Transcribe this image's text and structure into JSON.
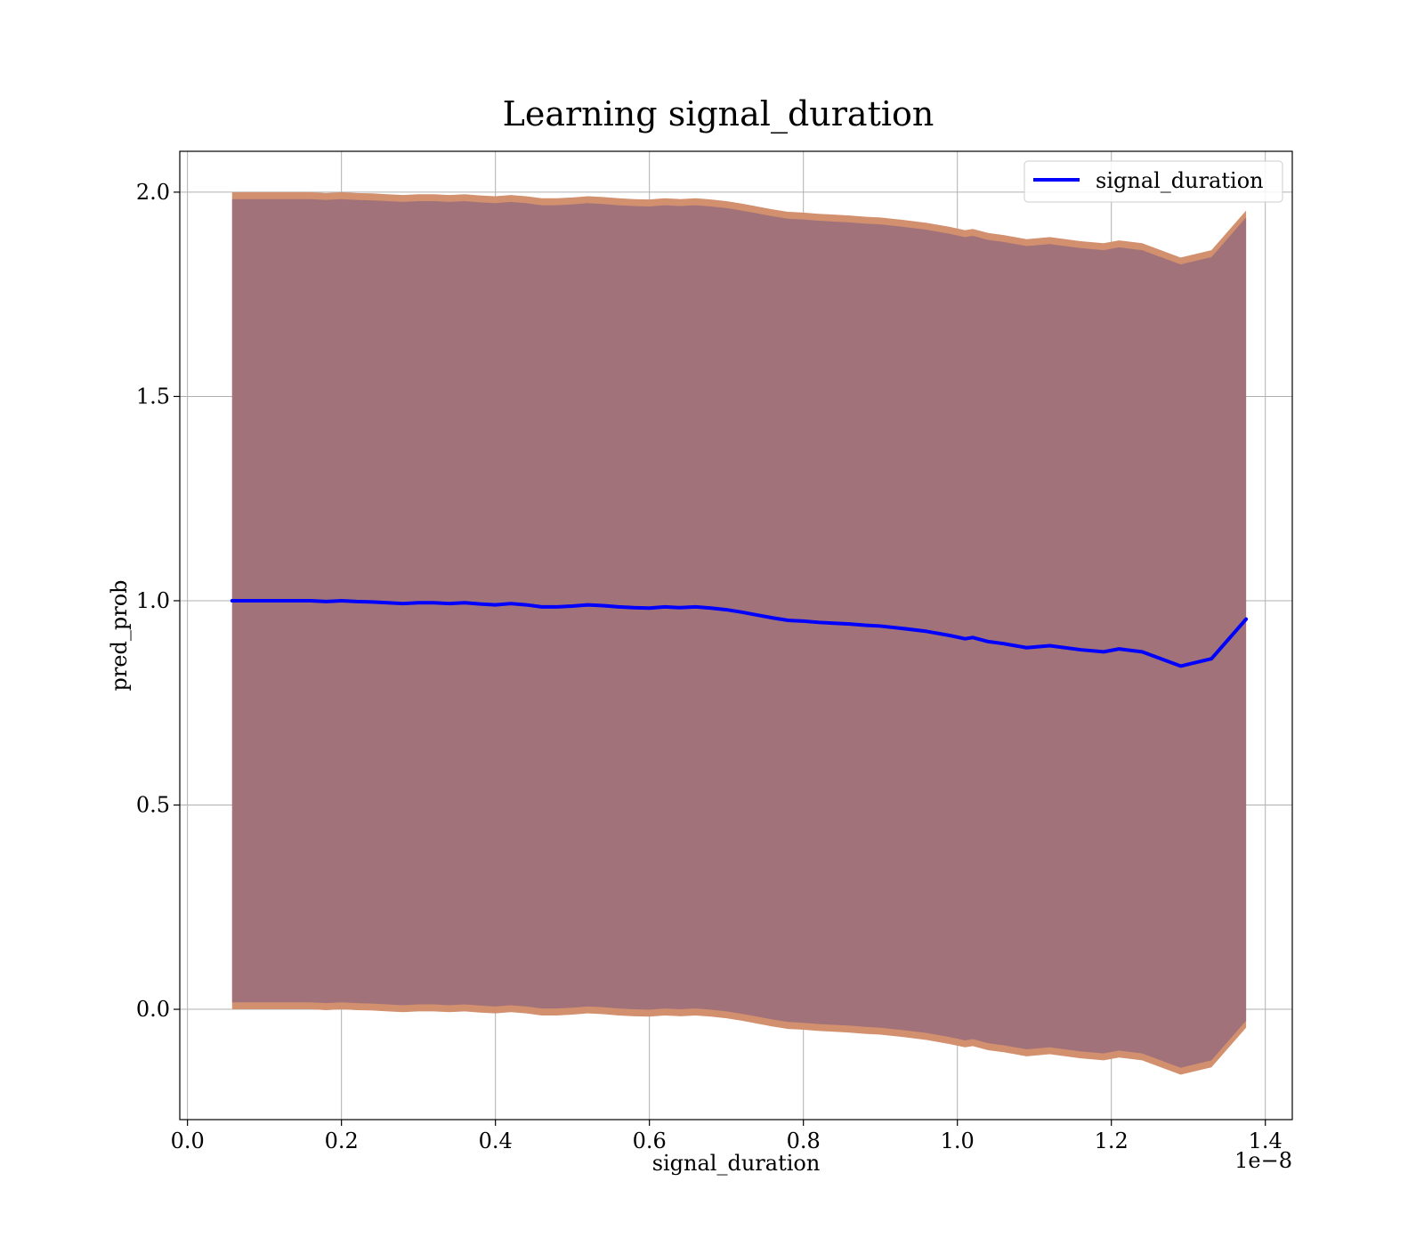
{
  "chart_data": {
    "type": "area",
    "title": "Learning signal_duration",
    "xlabel": "signal_duration",
    "ylabel": "pred_prob",
    "x_offset_text": "1e−8",
    "xlim": [
      -0.01,
      1.435
    ],
    "ylim": [
      -0.27,
      2.1
    ],
    "x_ticks": [
      0.0,
      0.2,
      0.4,
      0.6,
      0.8,
      1.0,
      1.2,
      1.4
    ],
    "x_tick_labels": [
      "0.0",
      "0.2",
      "0.4",
      "0.6",
      "0.8",
      "1.0",
      "1.2",
      "1.4"
    ],
    "y_ticks": [
      0.0,
      0.5,
      1.0,
      1.5,
      2.0
    ],
    "y_tick_labels": [
      "0.0",
      "0.5",
      "1.0",
      "1.5",
      "2.0"
    ],
    "grid": true,
    "legend": {
      "placement": "top-right",
      "entries": [
        "signal_duration"
      ]
    },
    "colors": {
      "line": "#0000ff",
      "band_outer": "#d2906e",
      "band_inner": "#a2727a"
    },
    "x": [
      0.058,
      0.08,
      0.1,
      0.12,
      0.14,
      0.16,
      0.18,
      0.2,
      0.22,
      0.24,
      0.26,
      0.28,
      0.3,
      0.32,
      0.34,
      0.36,
      0.38,
      0.4,
      0.42,
      0.44,
      0.46,
      0.48,
      0.5,
      0.52,
      0.54,
      0.56,
      0.58,
      0.6,
      0.62,
      0.64,
      0.66,
      0.68,
      0.7,
      0.72,
      0.74,
      0.76,
      0.78,
      0.8,
      0.82,
      0.84,
      0.86,
      0.88,
      0.9,
      0.93,
      0.96,
      0.99,
      1.01,
      1.02,
      1.04,
      1.06,
      1.09,
      1.12,
      1.16,
      1.19,
      1.21,
      1.24,
      1.29,
      1.33,
      1.375
    ],
    "series": [
      {
        "name": "signal_duration",
        "values": [
          1.0,
          1.0,
          1.0,
          1.0,
          1.0,
          1.0,
          0.998,
          1.0,
          0.998,
          0.997,
          0.995,
          0.993,
          0.995,
          0.995,
          0.993,
          0.995,
          0.992,
          0.99,
          0.993,
          0.99,
          0.985,
          0.985,
          0.987,
          0.99,
          0.988,
          0.985,
          0.983,
          0.982,
          0.985,
          0.983,
          0.985,
          0.982,
          0.978,
          0.972,
          0.965,
          0.958,
          0.952,
          0.95,
          0.947,
          0.945,
          0.943,
          0.94,
          0.938,
          0.932,
          0.925,
          0.915,
          0.907,
          0.91,
          0.9,
          0.895,
          0.885,
          0.89,
          0.88,
          0.875,
          0.882,
          0.875,
          0.84,
          0.858,
          0.955
        ]
      }
    ],
    "band_upper_outer": [
      2.0,
      2.0,
      2.0,
      2.0,
      2.0,
      2.0,
      1.998,
      2.0,
      1.998,
      1.997,
      1.995,
      1.993,
      1.995,
      1.995,
      1.993,
      1.995,
      1.992,
      1.99,
      1.993,
      1.99,
      1.985,
      1.985,
      1.987,
      1.99,
      1.988,
      1.985,
      1.983,
      1.982,
      1.985,
      1.983,
      1.985,
      1.982,
      1.978,
      1.972,
      1.965,
      1.958,
      1.952,
      1.95,
      1.947,
      1.945,
      1.943,
      1.94,
      1.938,
      1.932,
      1.925,
      1.915,
      1.907,
      1.91,
      1.9,
      1.895,
      1.885,
      1.89,
      1.88,
      1.875,
      1.882,
      1.875,
      1.84,
      1.858,
      1.955
    ],
    "band_upper_inner": [
      1.983,
      1.983,
      1.983,
      1.983,
      1.983,
      1.983,
      1.981,
      1.983,
      1.981,
      1.98,
      1.978,
      1.976,
      1.978,
      1.978,
      1.976,
      1.978,
      1.975,
      1.973,
      1.976,
      1.973,
      1.968,
      1.968,
      1.97,
      1.973,
      1.971,
      1.968,
      1.966,
      1.965,
      1.968,
      1.966,
      1.968,
      1.965,
      1.961,
      1.955,
      1.948,
      1.941,
      1.935,
      1.933,
      1.93,
      1.928,
      1.926,
      1.923,
      1.921,
      1.915,
      1.908,
      1.898,
      1.89,
      1.893,
      1.883,
      1.878,
      1.868,
      1.873,
      1.863,
      1.858,
      1.865,
      1.858,
      1.823,
      1.841,
      1.938
    ],
    "band_lower_inner": [
      0.017,
      0.017,
      0.017,
      0.017,
      0.017,
      0.017,
      0.015,
      0.017,
      0.015,
      0.014,
      0.012,
      0.01,
      0.012,
      0.012,
      0.01,
      0.012,
      0.009,
      0.007,
      0.01,
      0.007,
      0.002,
      0.002,
      0.004,
      0.007,
      0.005,
      0.002,
      0.0,
      -0.001,
      0.002,
      0.0,
      0.002,
      -0.001,
      -0.005,
      -0.011,
      -0.018,
      -0.025,
      -0.031,
      -0.033,
      -0.036,
      -0.038,
      -0.04,
      -0.043,
      -0.045,
      -0.051,
      -0.058,
      -0.068,
      -0.076,
      -0.073,
      -0.083,
      -0.088,
      -0.098,
      -0.093,
      -0.103,
      -0.108,
      -0.101,
      -0.108,
      -0.143,
      -0.125,
      -0.028
    ],
    "band_lower_outer": [
      0.0,
      0.0,
      0.0,
      0.0,
      0.0,
      0.0,
      -0.002,
      0.0,
      -0.002,
      -0.003,
      -0.005,
      -0.007,
      -0.005,
      -0.005,
      -0.007,
      -0.005,
      -0.008,
      -0.01,
      -0.007,
      -0.01,
      -0.015,
      -0.015,
      -0.013,
      -0.01,
      -0.012,
      -0.015,
      -0.017,
      -0.018,
      -0.015,
      -0.017,
      -0.015,
      -0.018,
      -0.022,
      -0.028,
      -0.035,
      -0.042,
      -0.048,
      -0.05,
      -0.053,
      -0.055,
      -0.057,
      -0.06,
      -0.062,
      -0.068,
      -0.075,
      -0.085,
      -0.093,
      -0.09,
      -0.1,
      -0.105,
      -0.115,
      -0.11,
      -0.12,
      -0.125,
      -0.118,
      -0.125,
      -0.16,
      -0.142,
      -0.045
    ]
  }
}
